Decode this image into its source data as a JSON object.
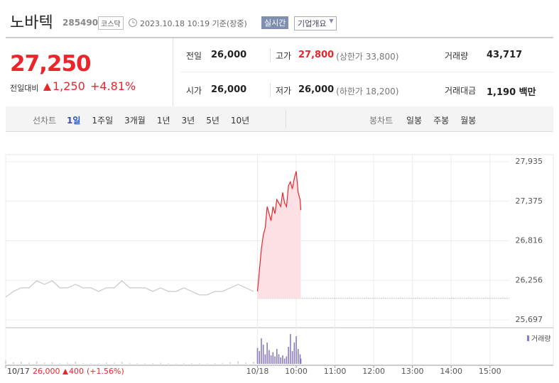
{
  "header": {
    "title": "노바텍",
    "code": "285490",
    "market": "코스닥",
    "time": "2023.10.18 10:19 기준(장중)",
    "realtime": "실시간",
    "company_button": "기업개요"
  },
  "quote": {
    "price": "27,250",
    "change_label": "전일대비",
    "change": "1,250",
    "change_pct": "+4.81%",
    "rows": [
      [
        {
          "label": "전일",
          "value": "26,000"
        },
        {
          "label": "고가",
          "value": "27,800",
          "note": "(상한가 33,800)"
        },
        {
          "label": "거래량",
          "value": "43,717"
        }
      ],
      [
        {
          "label": "시가",
          "value": "26,000"
        },
        {
          "label": "저가",
          "value": "26,000",
          "note": "(하한가 18,200)"
        },
        {
          "label": "거래대금",
          "value": "1,190 백만"
        }
      ]
    ]
  },
  "tabs": {
    "line_label": "선차트",
    "line_tabs": [
      "1일",
      "1주일",
      "3개월",
      "1년",
      "3년",
      "5년",
      "10년"
    ],
    "candle_label": "봉차트",
    "candle_tabs": [
      "일봉",
      "주봉",
      "월봉"
    ]
  },
  "footer": {
    "date": "10/17",
    "close": "26,000",
    "change": "400",
    "pct": "(+1.56%)"
  },
  "chart_data": {
    "type": "line",
    "volume_label": "거래량",
    "reference": 26000,
    "xlim": [
      0,
      13
    ],
    "xticks": [
      {
        "value": 0,
        "label": "10/17"
      },
      {
        "value": 6.5,
        "label": "10/18"
      },
      {
        "value": 7.5,
        "label": "10:00"
      },
      {
        "value": 8.5,
        "label": "11:00"
      },
      {
        "value": 9.5,
        "label": "12:00"
      },
      {
        "value": 10.5,
        "label": "13:00"
      },
      {
        "value": 11.5,
        "label": "14:00"
      },
      {
        "value": 12.5,
        "label": "15:00"
      }
    ],
    "ylim": [
      25697,
      27935
    ],
    "yticks": [
      {
        "value": 25697,
        "label": "25,697"
      },
      {
        "value": 26256,
        "label": "26,256"
      },
      {
        "value": 26816,
        "label": "26,816"
      },
      {
        "value": 27375,
        "label": "27,375"
      },
      {
        "value": 27935,
        "label": "27,935"
      }
    ],
    "vlim": [
      0,
      3000
    ],
    "series": [
      {
        "color": "#c8c8c8",
        "volume_color": "#cfcfcf",
        "x": [
          0,
          0.2,
          0.4,
          0.6,
          0.8,
          1.0,
          1.2,
          1.4,
          1.6,
          1.8,
          2.0,
          2.2,
          2.4,
          2.6,
          2.8,
          3.0,
          3.2,
          3.4,
          3.6,
          3.8,
          4.0,
          4.2,
          4.4,
          4.6,
          4.8,
          5.0,
          5.2,
          5.4,
          5.6,
          5.8,
          6.0,
          6.2,
          6.4
        ],
        "values": [
          26020,
          26100,
          26150,
          26150,
          26250,
          26200,
          26250,
          26150,
          26150,
          26200,
          26150,
          26150,
          26100,
          26150,
          26150,
          26250,
          26150,
          26150,
          26150,
          26100,
          26150,
          26100,
          26100,
          26150,
          26100,
          26050,
          26050,
          26100,
          26100,
          26150,
          26200,
          26150,
          26100
        ],
        "volume": [
          300,
          150,
          200,
          100,
          250,
          120,
          150,
          80,
          100,
          200,
          90,
          80,
          60,
          120,
          100,
          180,
          90,
          70,
          60,
          80,
          100,
          60,
          50,
          90,
          70,
          60,
          50,
          80,
          90,
          150,
          250,
          120,
          200
        ]
      },
      {
        "color": "#e8262b",
        "area_color": "#fde0e3",
        "volume_color": "#8a7bbf",
        "x": [
          6.5,
          6.55,
          6.6,
          6.65,
          6.7,
          6.75,
          6.8,
          6.85,
          6.9,
          6.95,
          7.0,
          7.05,
          7.1,
          7.15,
          7.2,
          7.25,
          7.3,
          7.35,
          7.4,
          7.45,
          7.5,
          7.55,
          7.6,
          7.62
        ],
        "values": [
          26100,
          26400,
          26700,
          26900,
          27000,
          27300,
          27200,
          27100,
          27300,
          27200,
          27400,
          27350,
          27300,
          27500,
          27350,
          27300,
          27600,
          27650,
          27550,
          27700,
          27800,
          27500,
          27400,
          27250
        ],
        "volume": [
          1500,
          1200,
          2400,
          1800,
          900,
          2000,
          1300,
          800,
          1100,
          700,
          1400,
          900,
          600,
          800,
          500,
          700,
          1600,
          2800,
          1200,
          2000,
          2600,
          1400,
          900,
          500
        ]
      }
    ]
  }
}
